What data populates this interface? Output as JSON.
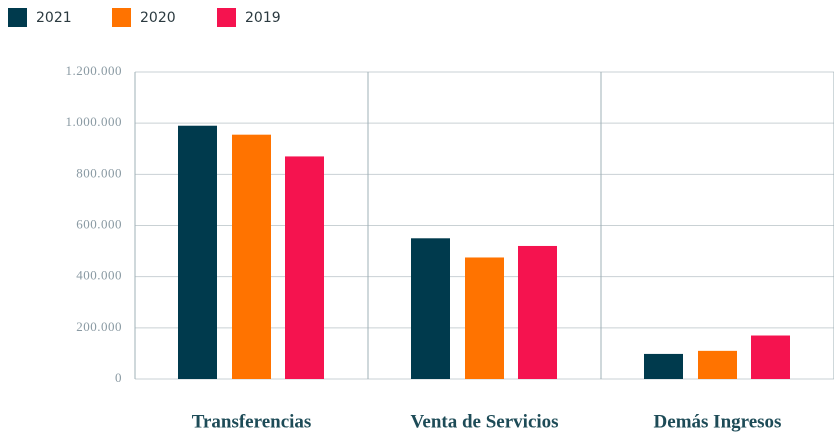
{
  "chart_data": {
    "type": "bar",
    "categories": [
      "Transferencias",
      "Venta de Servicios",
      "Demás Ingresos"
    ],
    "series": [
      {
        "name": "2021",
        "color": "#003a4d",
        "values": [
          990000,
          550000,
          98000
        ]
      },
      {
        "name": "2020",
        "color": "#ff7300",
        "values": [
          955000,
          475000,
          110000
        ]
      },
      {
        "name": "2019",
        "color": "#f5134f",
        "values": [
          870000,
          520000,
          170000
        ]
      }
    ],
    "ylim": [
      0,
      1200000
    ],
    "yticks": [
      0,
      {
        "value": 200000,
        "label": "200.000"
      },
      {
        "value": 400000,
        "label": "400.000"
      },
      {
        "value": 600000,
        "label": "600.000"
      },
      {
        "value": 800000,
        "label": "800.000"
      },
      {
        "value": 1000000,
        "label": "1.000.000"
      },
      {
        "value": 1200000,
        "label": "1.200.000"
      }
    ],
    "grid": true,
    "legend": "top-left"
  }
}
